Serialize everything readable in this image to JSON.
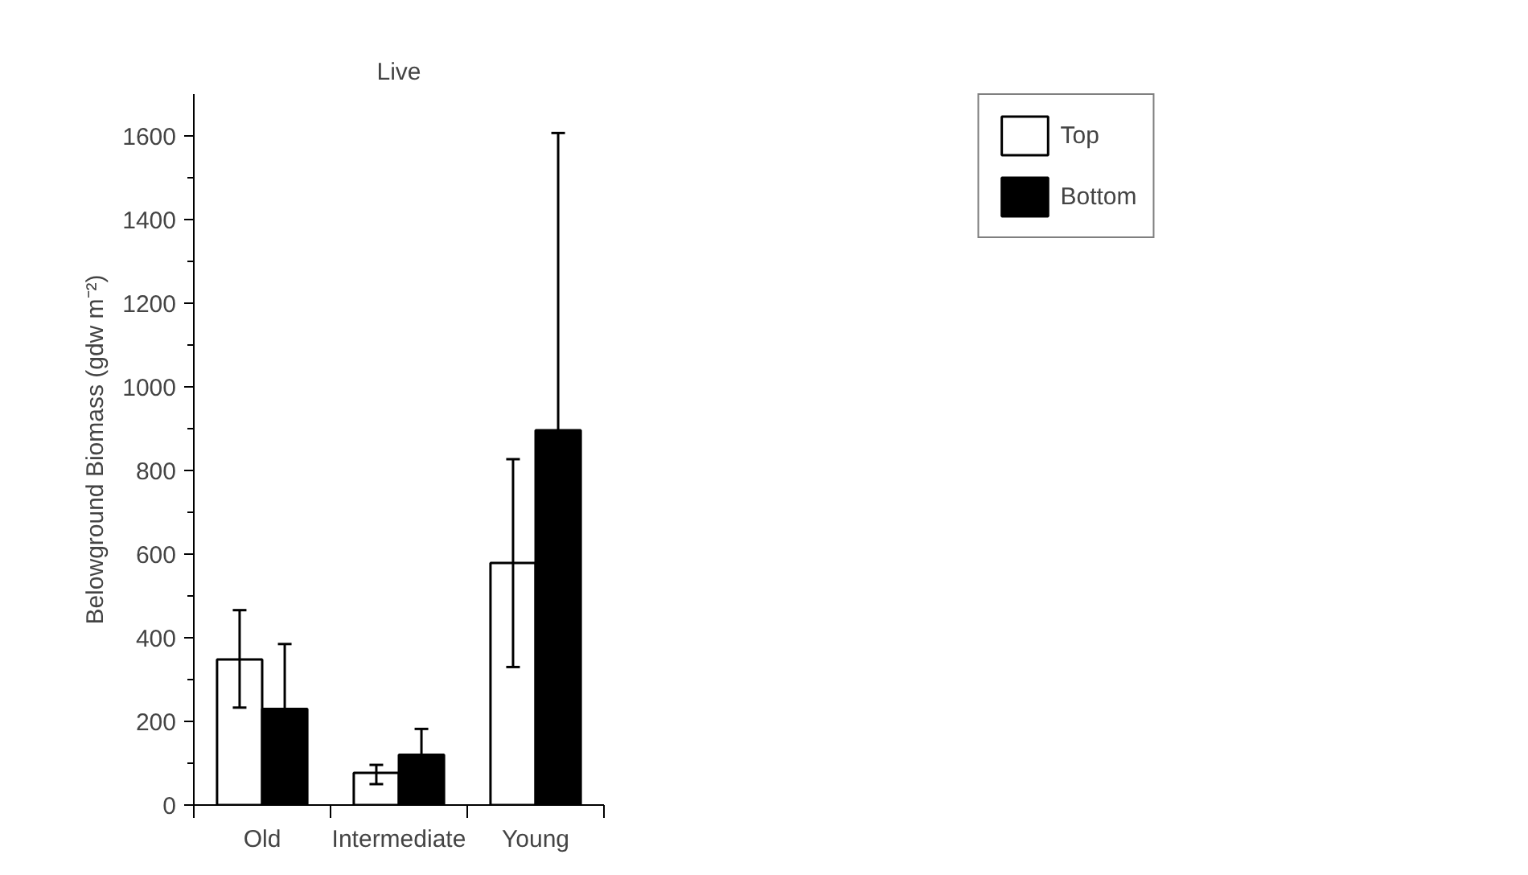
{
  "chart_data": {
    "type": "bar",
    "title": "Live",
    "ylabel": "Belowground Biomass (gdw m⁻²)",
    "categories": [
      "Old",
      "Intermediate",
      "Young"
    ],
    "series": [
      {
        "name": "Top",
        "color": "#ffffff",
        "values": [
          348,
          77,
          579
        ],
        "errors": [
          [
            233,
            466
          ],
          [
            50,
            96
          ],
          [
            330,
            827
          ]
        ]
      },
      {
        "name": "Bottom",
        "color": "#000000",
        "values": [
          230,
          120,
          896
        ],
        "errors": [
          155,
          62,
          711
        ]
      }
    ],
    "ylim": [
      0,
      1700
    ],
    "yticks": [
      0,
      200,
      400,
      600,
      800,
      1000,
      1200,
      1400,
      1600
    ],
    "grid": false,
    "legend": "top right"
  }
}
